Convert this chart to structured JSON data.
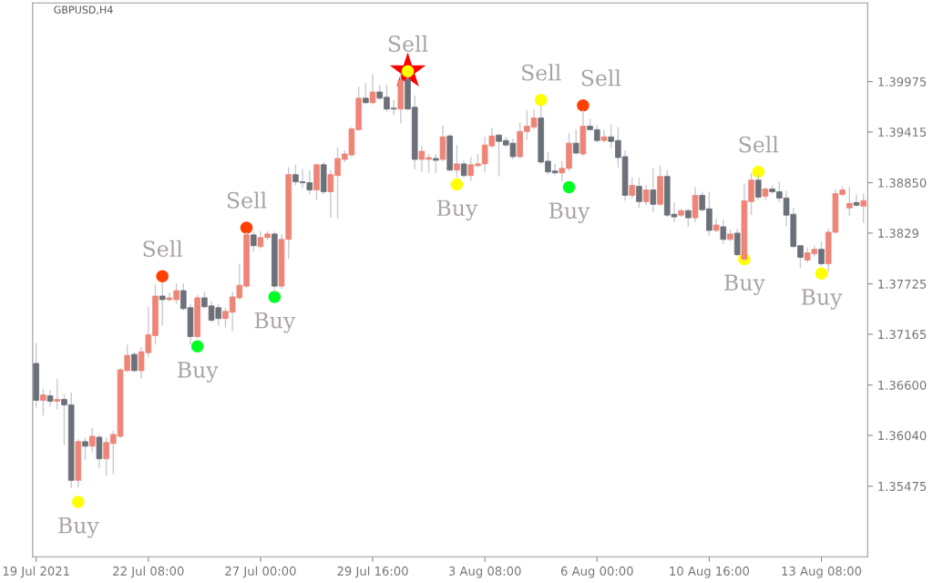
{
  "chart_data": {
    "type": "candlestick",
    "title": "GBPUSD,H4",
    "categories": [
      "19 Jul 2021",
      null,
      null,
      null,
      null,
      null,
      null,
      null,
      null,
      null,
      null,
      null,
      null,
      null,
      null,
      null,
      "22 Jul 08:00",
      null,
      null,
      null,
      null,
      null,
      null,
      null,
      null,
      null,
      null,
      null,
      null,
      null,
      null,
      null,
      "27 Jul 00:00",
      null,
      null,
      null,
      null,
      null,
      null,
      null,
      null,
      null,
      null,
      null,
      null,
      null,
      null,
      null,
      "29 Jul 16:00",
      null,
      null,
      null,
      null,
      null,
      null,
      null,
      null,
      null,
      null,
      null,
      null,
      null,
      null,
      null,
      "3 Aug 08:00",
      null,
      null,
      null,
      null,
      null,
      null,
      null,
      null,
      null,
      null,
      null,
      null,
      null,
      null,
      null,
      "6 Aug 00:00",
      null,
      null,
      null,
      null,
      null,
      null,
      null,
      null,
      null,
      null,
      null,
      null,
      null,
      null,
      null,
      "10 Aug 16:00",
      null,
      null,
      null,
      null,
      null,
      null,
      null,
      null,
      null,
      null,
      null,
      null,
      null,
      null,
      null,
      "13 Aug 08:00",
      null,
      null,
      null,
      null,
      null,
      null
    ],
    "ohlc": [
      [
        1.3684,
        1.3707,
        1.3635,
        1.3643
      ],
      [
        1.3643,
        1.3656,
        1.3626,
        1.3649
      ],
      [
        1.3648,
        1.3654,
        1.3636,
        1.3642
      ],
      [
        1.3642,
        1.3667,
        1.3633,
        1.3644
      ],
      [
        1.3644,
        1.365,
        1.3593,
        1.3638
      ],
      [
        1.3638,
        1.3652,
        1.3546,
        1.3554
      ],
      [
        1.3554,
        1.36,
        1.3546,
        1.3597
      ],
      [
        1.3597,
        1.3602,
        1.3577,
        1.3592
      ],
      [
        1.3592,
        1.3612,
        1.3585,
        1.3603
      ],
      [
        1.3602,
        1.3605,
        1.3568,
        1.3578
      ],
      [
        1.3578,
        1.3602,
        1.3559,
        1.3596
      ],
      [
        1.3595,
        1.3609,
        1.3561,
        1.3605
      ],
      [
        1.3603,
        1.3679,
        1.3601,
        1.3677
      ],
      [
        1.3676,
        1.3705,
        1.3675,
        1.3693
      ],
      [
        1.3694,
        1.3697,
        1.3674,
        1.3676
      ],
      [
        1.3676,
        1.3702,
        1.3667,
        1.3697
      ],
      [
        1.3696,
        1.3747,
        1.3691,
        1.3716
      ],
      [
        1.3715,
        1.3772,
        1.3705,
        1.3759
      ],
      [
        1.3759,
        1.3774,
        1.3726,
        1.3755
      ],
      [
        1.3755,
        1.3763,
        1.3753,
        1.3757
      ],
      [
        1.3755,
        1.3773,
        1.375,
        1.3765
      ],
      [
        1.3765,
        1.3773,
        1.3743,
        1.3745
      ],
      [
        1.3746,
        1.375,
        1.3705,
        1.3714
      ],
      [
        1.3714,
        1.376,
        1.3712,
        1.3757
      ],
      [
        1.3757,
        1.3764,
        1.3745,
        1.3747
      ],
      [
        1.3748,
        1.3753,
        1.373,
        1.3732
      ],
      [
        1.3746,
        1.375,
        1.3726,
        1.3734
      ],
      [
        1.3734,
        1.3746,
        1.3724,
        1.3742
      ],
      [
        1.3741,
        1.3764,
        1.372,
        1.3758
      ],
      [
        1.3757,
        1.3795,
        1.3755,
        1.3771
      ],
      [
        1.377,
        1.383,
        1.3768,
        1.3827
      ],
      [
        1.3827,
        1.3831,
        1.3808,
        1.3815
      ],
      [
        1.3814,
        1.3831,
        1.3812,
        1.3824
      ],
      [
        1.3824,
        1.3831,
        1.3821,
        1.3828
      ],
      [
        1.3828,
        1.3831,
        1.3763,
        1.377
      ],
      [
        1.377,
        1.3828,
        1.3767,
        1.3822
      ],
      [
        1.3822,
        1.3902,
        1.38,
        1.3894
      ],
      [
        1.3894,
        1.3905,
        1.3882,
        1.3886
      ],
      [
        1.3886,
        1.39,
        1.3879,
        1.3885
      ],
      [
        1.3885,
        1.3899,
        1.3872,
        1.3877
      ],
      [
        1.3877,
        1.3906,
        1.3866,
        1.3905
      ],
      [
        1.3905,
        1.3908,
        1.3872,
        1.3875
      ],
      [
        1.3875,
        1.3899,
        1.3846,
        1.3894
      ],
      [
        1.3893,
        1.3924,
        1.3845,
        1.3912
      ],
      [
        1.3911,
        1.3921,
        1.3908,
        1.3917
      ],
      [
        1.3916,
        1.3947,
        1.3914,
        1.3945
      ],
      [
        1.3944,
        1.3992,
        1.3943,
        1.3979
      ],
      [
        1.3979,
        1.3996,
        1.3972,
        1.3974
      ],
      [
        1.3974,
        1.4006,
        1.3972,
        1.3986
      ],
      [
        1.3986,
        1.3994,
        1.3977,
        1.3979
      ],
      [
        1.398,
        1.3994,
        1.3964,
        1.3967
      ],
      [
        1.3968,
        1.3977,
        1.396,
        1.3967
      ],
      [
        1.3967,
        1.4007,
        1.3951,
        1.3999
      ],
      [
        1.4,
        1.4004,
        1.3966,
        1.3967
      ],
      [
        1.3969,
        1.3982,
        1.39,
        1.3911
      ],
      [
        1.3911,
        1.3926,
        1.3897,
        1.392
      ],
      [
        1.3911,
        1.3917,
        1.3896,
        1.3913
      ],
      [
        1.3912,
        1.3917,
        1.3896,
        1.391
      ],
      [
        1.3911,
        1.3949,
        1.3909,
        1.3936
      ],
      [
        1.3937,
        1.3939,
        1.3898,
        1.3899
      ],
      [
        1.3899,
        1.3927,
        1.3891,
        1.3906
      ],
      [
        1.3906,
        1.391,
        1.3891,
        1.3893
      ],
      [
        1.3893,
        1.3914,
        1.3887,
        1.3905
      ],
      [
        1.3904,
        1.3917,
        1.3902,
        1.3906
      ],
      [
        1.3906,
        1.3936,
        1.3897,
        1.3927
      ],
      [
        1.3926,
        1.3946,
        1.3924,
        1.3937
      ],
      [
        1.3938,
        1.3939,
        1.3892,
        1.3931
      ],
      [
        1.3932,
        1.3936,
        1.3924,
        1.3927
      ],
      [
        1.3929,
        1.3934,
        1.3911,
        1.3914
      ],
      [
        1.3914,
        1.3952,
        1.3912,
        1.3942
      ],
      [
        1.3942,
        1.3966,
        1.3933,
        1.3948
      ],
      [
        1.3947,
        1.3967,
        1.3944,
        1.3957
      ],
      [
        1.3957,
        1.3971,
        1.3906,
        1.3908
      ],
      [
        1.3909,
        1.3919,
        1.3894,
        1.3897
      ],
      [
        1.3898,
        1.3906,
        1.3894,
        1.3896
      ],
      [
        1.3896,
        1.3909,
        1.3886,
        1.3901
      ],
      [
        1.3901,
        1.394,
        1.3898,
        1.3929
      ],
      [
        1.3929,
        1.3944,
        1.3916,
        1.3918
      ],
      [
        1.3917,
        1.3966,
        1.3915,
        1.3948
      ],
      [
        1.3948,
        1.3956,
        1.3943,
        1.3944
      ],
      [
        1.3944,
        1.3949,
        1.393,
        1.3932
      ],
      [
        1.3932,
        1.3944,
        1.393,
        1.3936
      ],
      [
        1.3936,
        1.395,
        1.3923,
        1.3931
      ],
      [
        1.3932,
        1.3947,
        1.3902,
        1.3913
      ],
      [
        1.3914,
        1.3921,
        1.3865,
        1.3871
      ],
      [
        1.3871,
        1.3891,
        1.3868,
        1.3882
      ],
      [
        1.3881,
        1.3891,
        1.3857,
        1.3864
      ],
      [
        1.3864,
        1.3882,
        1.386,
        1.3877
      ],
      [
        1.3877,
        1.3901,
        1.3852,
        1.3861
      ],
      [
        1.3861,
        1.3904,
        1.3859,
        1.3892
      ],
      [
        1.3892,
        1.3899,
        1.3847,
        1.3849
      ],
      [
        1.385,
        1.3863,
        1.3841,
        1.3847
      ],
      [
        1.3849,
        1.3856,
        1.3847,
        1.3854
      ],
      [
        1.3854,
        1.3856,
        1.3836,
        1.3846
      ],
      [
        1.3846,
        1.388,
        1.3841,
        1.3871
      ],
      [
        1.3871,
        1.3875,
        1.3853,
        1.3855
      ],
      [
        1.3856,
        1.3875,
        1.3826,
        1.3832
      ],
      [
        1.3832,
        1.3845,
        1.383,
        1.3838
      ],
      [
        1.3836,
        1.3844,
        1.3817,
        1.3822
      ],
      [
        1.3822,
        1.3833,
        1.382,
        1.3828
      ],
      [
        1.3829,
        1.3834,
        1.3803,
        1.3805
      ],
      [
        1.38,
        1.3884,
        1.3798,
        1.3865
      ],
      [
        1.3864,
        1.3896,
        1.3849,
        1.3888
      ],
      [
        1.3888,
        1.3894,
        1.3866,
        1.3869
      ],
      [
        1.387,
        1.388,
        1.3866,
        1.3878
      ],
      [
        1.3878,
        1.3882,
        1.3873,
        1.3875
      ],
      [
        1.3875,
        1.3886,
        1.3863,
        1.3868
      ],
      [
        1.3868,
        1.3876,
        1.3837,
        1.3849
      ],
      [
        1.385,
        1.3857,
        1.3813,
        1.3814
      ],
      [
        1.3815,
        1.3815,
        1.379,
        1.3802
      ],
      [
        1.3799,
        1.3813,
        1.3796,
        1.3807
      ],
      [
        1.3806,
        1.3815,
        1.3803,
        1.3811
      ],
      [
        1.3811,
        1.382,
        1.3793,
        1.3795
      ],
      [
        1.3795,
        1.3834,
        1.3786,
        1.383
      ],
      [
        1.383,
        1.3878,
        1.3828,
        1.3873
      ],
      [
        1.3872,
        1.3881,
        1.387,
        1.3877
      ],
      [
        1.3857,
        1.388,
        1.3848,
        1.3862
      ],
      [
        1.3863,
        1.3872,
        1.3858,
        1.386
      ],
      [
        1.3859,
        1.3873,
        1.384,
        1.3865
      ]
    ],
    "colors": [
      "#6b7079",
      "#ee8577",
      "#6b7079",
      "#ee8577",
      "#6b7079",
      "#6b7079",
      "#ee8577",
      "#6b7079",
      "#ee8577",
      "#6b7079",
      "#ee8577",
      "#ee8577",
      "#ee8577",
      "#ee8577",
      "#6b7079",
      "#ee8577",
      "#ee8577",
      "#ee8577",
      "#6b7079",
      "#ee8577",
      "#ee8577",
      "#6b7079",
      "#6b7079",
      "#ee8577",
      "#6b7079",
      "#6b7079",
      "#6b7079",
      "#ee8577",
      "#ee8577",
      "#ee8577",
      "#ee8577",
      "#6b7079",
      "#ee8577",
      "#ee8577",
      "#6b7079",
      "#ee8577",
      "#ee8577",
      "#6b7079",
      "#6b7079",
      "#6b7079",
      "#ee8577",
      "#6b7079",
      "#ee8577",
      "#ee8577",
      "#ee8577",
      "#ee8577",
      "#ee8577",
      "#6b7079",
      "#ee8577",
      "#6b7079",
      "#6b7079",
      "#6b7079",
      "#ee8577",
      "#6b7079",
      "#6b7079",
      "#ee8577",
      "#ee8577",
      "#6b7079",
      "#ee8577",
      "#6b7079",
      "#ee8577",
      "#6b7079",
      "#ee8577",
      "#ee8577",
      "#ee8577",
      "#ee8577",
      "#6b7079",
      "#6b7079",
      "#6b7079",
      "#ee8577",
      "#ee8577",
      "#ee8577",
      "#6b7079",
      "#6b7079",
      "#6b7079",
      "#ee8577",
      "#ee8577",
      "#6b7079",
      "#ee8577",
      "#6b7079",
      "#6b7079",
      "#ee8577",
      "#6b7079",
      "#6b7079",
      "#6b7079",
      "#ee8577",
      "#6b7079",
      "#ee8577",
      "#6b7079",
      "#ee8577",
      "#6b7079",
      "#6b7079",
      "#ee8577",
      "#6b7079",
      "#ee8577",
      "#6b7079",
      "#6b7079",
      "#ee8577",
      "#6b7079",
      "#ee8577",
      "#6b7079",
      "#ee8577",
      "#ee8577",
      "#6b7079",
      "#ee8577",
      "#6b7079",
      "#6b7079",
      "#6b7079",
      "#6b7079",
      "#6b7079",
      "#ee8577",
      "#ee8577",
      "#6b7079",
      "#ee8577",
      "#ee8577",
      "#ee8577",
      "#ee8577",
      "#6b7079",
      "#ee8577"
    ],
    "series": [
      {
        "type": "scatter",
        "marker": "star",
        "color": "#ff0000",
        "values": [
          null,
          null,
          null,
          null,
          null,
          null,
          null,
          null,
          null,
          null,
          null,
          null,
          null,
          null,
          null,
          null,
          null,
          null,
          null,
          null,
          null,
          null,
          null,
          null,
          null,
          null,
          null,
          null,
          null,
          null,
          null,
          null,
          null,
          null,
          null,
          null,
          null,
          null,
          null,
          null,
          null,
          null,
          null,
          null,
          null,
          null,
          null,
          null,
          null,
          null,
          null,
          null,
          null,
          1.4009,
          null,
          null,
          null,
          null,
          null,
          null,
          null,
          null,
          null,
          null,
          null,
          null,
          null,
          null,
          null,
          null,
          null,
          null,
          null,
          null,
          null,
          null,
          null,
          null,
          null,
          null,
          null,
          null,
          null,
          null,
          null,
          null,
          null,
          null,
          null,
          null,
          null,
          null,
          null,
          null,
          null,
          null,
          null,
          null,
          null,
          null,
          null,
          null,
          null,
          null,
          null,
          null,
          null,
          null,
          null,
          null,
          null,
          null,
          null,
          null,
          null,
          null,
          null,
          null,
          null
        ]
      },
      {
        "type": "scatter",
        "marker": "circle",
        "values": [
          null,
          null,
          null,
          null,
          null,
          null,
          null,
          null,
          null,
          null,
          null,
          null,
          null,
          null,
          null,
          null,
          null,
          null,
          1.3781,
          null,
          null,
          null,
          null,
          null,
          null,
          null,
          null,
          null,
          null,
          null,
          1.3835,
          null,
          null,
          null,
          null,
          null,
          null,
          null,
          null,
          null,
          null,
          null,
          null,
          null,
          null,
          null,
          null,
          null,
          null,
          null,
          null,
          null,
          null,
          1.4009,
          null,
          null,
          null,
          null,
          null,
          null,
          null,
          null,
          null,
          null,
          null,
          null,
          null,
          null,
          null,
          null,
          null,
          null,
          1.3977,
          null,
          null,
          null,
          null,
          null,
          1.3971,
          null,
          null,
          null,
          null,
          null,
          null,
          null,
          null,
          null,
          null,
          null,
          null,
          null,
          null,
          null,
          null,
          null,
          null,
          null,
          null,
          null,
          null,
          null,
          null,
          1.3897,
          null,
          null,
          null,
          null,
          null,
          null,
          null,
          null,
          null,
          null,
          null,
          null,
          null,
          null,
          null
        ],
        "colors": [
          null,
          null,
          null,
          null,
          null,
          null,
          null,
          null,
          null,
          null,
          null,
          null,
          null,
          null,
          null,
          null,
          null,
          null,
          "#ff4000",
          null,
          null,
          null,
          null,
          null,
          null,
          null,
          null,
          null,
          null,
          null,
          "#ff4000",
          null,
          null,
          null,
          null,
          null,
          null,
          null,
          null,
          null,
          null,
          null,
          null,
          null,
          null,
          null,
          null,
          null,
          null,
          null,
          null,
          null,
          null,
          "#ffff00",
          null,
          null,
          null,
          null,
          null,
          null,
          null,
          null,
          null,
          null,
          null,
          null,
          null,
          null,
          null,
          null,
          null,
          null,
          "#ffff00",
          null,
          null,
          null,
          null,
          null,
          "#ff4000",
          null,
          null,
          null,
          null,
          null,
          null,
          null,
          null,
          null,
          null,
          null,
          null,
          null,
          null,
          null,
          null,
          null,
          null,
          null,
          null,
          null,
          null,
          null,
          null,
          "#ffff00",
          null,
          null,
          null,
          null,
          null,
          null,
          null,
          null,
          null,
          null,
          null,
          null,
          null,
          null,
          null
        ],
        "value_labels": [
          null,
          null,
          null,
          null,
          null,
          null,
          null,
          null,
          null,
          null,
          null,
          null,
          null,
          null,
          null,
          null,
          null,
          null,
          "Sell",
          null,
          null,
          null,
          null,
          null,
          null,
          null,
          null,
          null,
          null,
          null,
          "Sell",
          null,
          null,
          null,
          null,
          null,
          null,
          null,
          null,
          null,
          null,
          null,
          null,
          null,
          null,
          null,
          null,
          null,
          null,
          null,
          null,
          null,
          null,
          "Sell",
          null,
          null,
          null,
          null,
          null,
          null,
          null,
          null,
          null,
          null,
          null,
          null,
          null,
          null,
          null,
          null,
          null,
          null,
          "Sell",
          null,
          null,
          null,
          null,
          null,
          "Sell",
          null,
          null,
          null,
          null,
          null,
          null,
          null,
          null,
          null,
          null,
          null,
          null,
          null,
          null,
          null,
          null,
          null,
          null,
          null,
          null,
          null,
          null,
          null,
          null,
          "Sell",
          null,
          null,
          null,
          null,
          null,
          null,
          null,
          null,
          null,
          null,
          null,
          null,
          null,
          null,
          null
        ]
      },
      {
        "type": "scatter",
        "marker": "circle",
        "values": [
          null,
          null,
          null,
          null,
          null,
          null,
          1.353,
          null,
          null,
          null,
          null,
          null,
          null,
          null,
          null,
          null,
          null,
          null,
          null,
          null,
          null,
          null,
          null,
          1.3703,
          null,
          null,
          null,
          null,
          null,
          null,
          null,
          null,
          null,
          null,
          1.3758,
          null,
          null,
          null,
          null,
          null,
          null,
          null,
          null,
          null,
          null,
          null,
          null,
          null,
          null,
          null,
          null,
          null,
          null,
          null,
          null,
          null,
          null,
          null,
          null,
          null,
          1.3883,
          null,
          null,
          null,
          null,
          null,
          null,
          null,
          null,
          null,
          null,
          null,
          null,
          null,
          null,
          null,
          1.388,
          null,
          null,
          null,
          null,
          null,
          null,
          null,
          null,
          null,
          null,
          null,
          null,
          null,
          null,
          null,
          null,
          null,
          null,
          null,
          null,
          null,
          null,
          null,
          null,
          1.38,
          null,
          null,
          null,
          null,
          null,
          null,
          null,
          null,
          null,
          null,
          1.3784,
          null,
          null,
          null,
          null,
          null,
          null
        ],
        "colors": [
          null,
          null,
          null,
          null,
          null,
          null,
          "#ffff00",
          null,
          null,
          null,
          null,
          null,
          null,
          null,
          null,
          null,
          null,
          null,
          null,
          null,
          null,
          null,
          null,
          "#00ff22",
          null,
          null,
          null,
          null,
          null,
          null,
          null,
          null,
          null,
          null,
          "#00ff22",
          null,
          null,
          null,
          null,
          null,
          null,
          null,
          null,
          null,
          null,
          null,
          null,
          null,
          null,
          null,
          null,
          null,
          null,
          null,
          null,
          null,
          null,
          null,
          null,
          null,
          "#ffff00",
          null,
          null,
          null,
          null,
          null,
          null,
          null,
          null,
          null,
          null,
          null,
          null,
          null,
          null,
          null,
          "#00ff22",
          null,
          null,
          null,
          null,
          null,
          null,
          null,
          null,
          null,
          null,
          null,
          null,
          null,
          null,
          null,
          null,
          null,
          null,
          null,
          null,
          null,
          null,
          null,
          null,
          "#ffff00",
          null,
          null,
          null,
          null,
          null,
          null,
          null,
          null,
          null,
          null,
          "#ffff00",
          null,
          null,
          null,
          null,
          null,
          null
        ],
        "value_labels": [
          null,
          null,
          null,
          null,
          null,
          null,
          "Buy",
          null,
          null,
          null,
          null,
          null,
          null,
          null,
          null,
          null,
          null,
          null,
          null,
          null,
          null,
          null,
          null,
          "Buy",
          null,
          null,
          null,
          null,
          null,
          null,
          null,
          null,
          null,
          null,
          "Buy",
          null,
          null,
          null,
          null,
          null,
          null,
          null,
          null,
          null,
          null,
          null,
          null,
          null,
          null,
          null,
          null,
          null,
          null,
          null,
          null,
          null,
          null,
          null,
          null,
          null,
          "Buy",
          null,
          null,
          null,
          null,
          null,
          null,
          null,
          null,
          null,
          null,
          null,
          null,
          null,
          null,
          null,
          "Buy",
          null,
          null,
          null,
          null,
          null,
          null,
          null,
          null,
          null,
          null,
          null,
          null,
          null,
          null,
          null,
          null,
          null,
          null,
          null,
          null,
          null,
          null,
          null,
          null,
          "Buy",
          null,
          null,
          null,
          null,
          null,
          null,
          null,
          null,
          null,
          null,
          "Buy",
          null,
          null,
          null,
          null,
          null,
          null
        ]
      }
    ],
    "ylim": [
      1.3469,
      1.4085
    ],
    "yticks": [
      1.39975,
      1.39415,
      {
        "value": 1.3885,
        "label": "1.38850"
      },
      1.3829,
      {
        "value": 1.37725,
        "label": "1.37725"
      },
      1.37165,
      {
        "value": 1.366,
        "label": "1.36600"
      },
      {
        "value": 1.3604,
        "label": "1.36040"
      },
      1.35475
    ],
    "grid": false,
    "legend": false
  }
}
